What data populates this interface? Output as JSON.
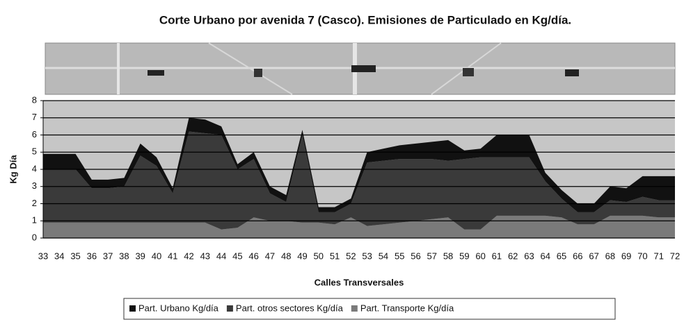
{
  "chart_data": {
    "type": "stacked-area",
    "title": "Corte Urbano por avenida 7 (Casco). Emisiones  de Particulado en Kg/día.",
    "y_label": "Kg Día",
    "x_label": "Calles Transversales",
    "categories": [
      "33",
      "34",
      "35",
      "36",
      "37",
      "38",
      "39",
      "40",
      "41",
      "42",
      "43",
      "44",
      "45",
      "46",
      "47",
      "48",
      "49",
      "50",
      "51",
      "52",
      "53",
      "54",
      "55",
      "56",
      "57",
      "58",
      "59",
      "60",
      "61",
      "62",
      "63",
      "64",
      "65",
      "66",
      "67",
      "68",
      "69",
      "70",
      "71",
      "72"
    ],
    "series": [
      {
        "name": "Part. Urbano  Kg/día",
        "color": "#111111",
        "values": [
          0.9,
          0.9,
          0.9,
          0.5,
          0.5,
          0.5,
          0.7,
          0.5,
          0.3,
          0.8,
          0.8,
          0.5,
          0.3,
          0.4,
          0.4,
          0.4,
          0.3,
          0.3,
          0.3,
          0.3,
          0.6,
          0.7,
          0.8,
          0.9,
          1.0,
          1.2,
          0.5,
          0.5,
          1.3,
          1.3,
          1.3,
          0.5,
          0.5,
          0.5,
          0.5,
          0.8,
          0.8,
          1.2,
          1.4,
          1.4
        ]
      },
      {
        "name": "Part. otros sectores Kg/día",
        "color": "#3a3a3a",
        "values": [
          3.1,
          3.1,
          3.1,
          2.0,
          2.0,
          2.1,
          3.9,
          3.3,
          1.7,
          5.3,
          5.2,
          5.5,
          3.4,
          3.4,
          1.6,
          1.1,
          5.1,
          0.6,
          0.7,
          0.8,
          3.7,
          3.7,
          3.7,
          3.6,
          3.5,
          3.3,
          4.1,
          4.2,
          3.4,
          3.4,
          3.4,
          2.0,
          1.1,
          0.7,
          0.7,
          0.9,
          0.8,
          1.1,
          1.0,
          1.0
        ]
      },
      {
        "name": "Part. Transporte Kg/día",
        "color": "#7a7a7a",
        "values": [
          0.9,
          0.9,
          0.9,
          0.9,
          0.9,
          0.9,
          0.9,
          0.9,
          0.9,
          0.9,
          0.9,
          0.5,
          0.6,
          1.2,
          1.0,
          1.0,
          0.9,
          0.9,
          0.8,
          1.2,
          0.7,
          0.8,
          0.9,
          1.0,
          1.1,
          1.2,
          0.5,
          0.5,
          1.3,
          1.3,
          1.3,
          1.3,
          1.2,
          0.8,
          0.8,
          1.3,
          1.3,
          1.3,
          1.2,
          1.2
        ]
      }
    ],
    "ylim": [
      0,
      8
    ],
    "yticks": [
      0,
      1,
      2,
      3,
      4,
      5,
      6,
      7,
      8
    ],
    "grid": true
  }
}
